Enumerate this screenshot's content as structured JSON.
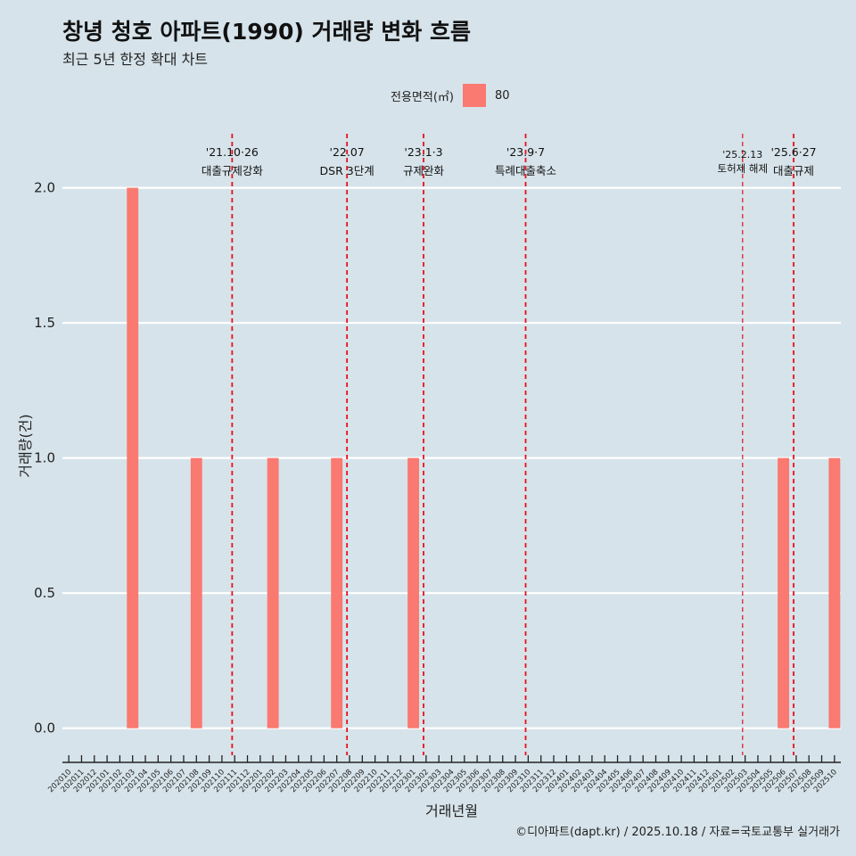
{
  "title": "창녕 청호 아파트(1990) 거래량 변화 흐름",
  "subtitle": "최근 5년 한정 확대 차트",
  "legend": {
    "title": "전용면적(㎡)",
    "entries": [
      "80"
    ]
  },
  "caption": "©디아파트(dapt.kr) / 2025.10.18 / 자료=국토교통부 실거래가",
  "colors": {
    "background": "#d6e3ea",
    "bar": "#fa7970",
    "grid": "#ffffff",
    "event_line": "#e8101a"
  },
  "chart_data": {
    "type": "bar",
    "title": "창녕 청호 아파트(1990) 거래량 변화 흐름",
    "xlabel": "거래년월",
    "ylabel": "거래량(건)",
    "ylim": [
      -0.1,
      2.2
    ],
    "yticks": [
      "0.0",
      "0.5",
      "1.0",
      "1.5",
      "2.0"
    ],
    "categories": [
      "202010",
      "202011",
      "202012",
      "202101",
      "202102",
      "202103",
      "202104",
      "202105",
      "202106",
      "202107",
      "202108",
      "202109",
      "202110",
      "202111",
      "202112",
      "202201",
      "202202",
      "202203",
      "202204",
      "202205",
      "202206",
      "202207",
      "202208",
      "202209",
      "202210",
      "202211",
      "202212",
      "202301",
      "202302",
      "202303",
      "202304",
      "202305",
      "202306",
      "202307",
      "202308",
      "202309",
      "202310",
      "202311",
      "202312",
      "202401",
      "202402",
      "202403",
      "202404",
      "202405",
      "202406",
      "202407",
      "202408",
      "202409",
      "202410",
      "202411",
      "202412",
      "202501",
      "202502",
      "202503",
      "202504",
      "202505",
      "202506",
      "202507",
      "202508",
      "202509",
      "202510"
    ],
    "series": [
      {
        "name": "80",
        "values": [
          0,
          0,
          0,
          0,
          0,
          2,
          0,
          0,
          0,
          0,
          1,
          0,
          0,
          0,
          0,
          0,
          1,
          0,
          0,
          0,
          0,
          1,
          0,
          0,
          0,
          0,
          0,
          1,
          0,
          0,
          0,
          0,
          0,
          0,
          0,
          0,
          0,
          0,
          0,
          0,
          0,
          0,
          0,
          0,
          0,
          0,
          0,
          0,
          0,
          0,
          0,
          0,
          0,
          0,
          0,
          0,
          1,
          0,
          0,
          0,
          1
        ]
      }
    ],
    "events": [
      {
        "date": "'21.10·26",
        "label": "대출규제강화",
        "x_index": 12.8,
        "style": "major"
      },
      {
        "date": "'22.07",
        "label": "DSR 3단계",
        "x_index": 21.8,
        "style": "major"
      },
      {
        "date": "'23.1·3",
        "label": "규제완화",
        "x_index": 27.8,
        "style": "major"
      },
      {
        "date": "'23.9·7",
        "label": "특례대출축소",
        "x_index": 35.8,
        "style": "major"
      },
      {
        "date": "'25.2.13",
        "label": "토허제 해제",
        "x_index": 52.8,
        "style": "minor"
      },
      {
        "date": "'25.6·27",
        "label": "대출규제",
        "x_index": 56.8,
        "style": "major"
      }
    ]
  }
}
